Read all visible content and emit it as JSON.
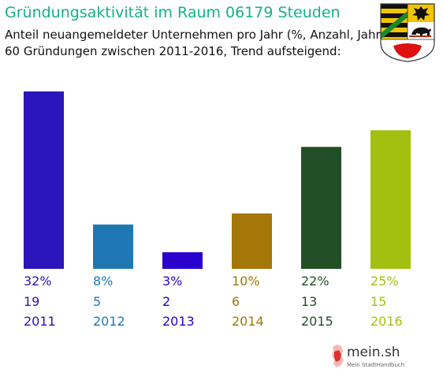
{
  "header": {
    "title": "Gründungsaktivität im Raum 06179 Steuden",
    "subtitle_line1": "Anteil neuangemeldeter Unternehmen pro Jahr (%, Anzahl, Jahr)",
    "subtitle_line2": "60 Gründungen zwischen 2011-2016, Trend aufsteigend:"
  },
  "crest": {
    "icon": "coat-of-arms-icon"
  },
  "chart_data": {
    "type": "bar",
    "title": "Gründungsaktivität im Raum 06179 Steuden",
    "categories": [
      "2011",
      "2012",
      "2013",
      "2014",
      "2015",
      "2016"
    ],
    "series": [
      {
        "values": [
          32,
          8,
          3,
          10,
          22,
          25
        ]
      }
    ],
    "counts": [
      19,
      5,
      2,
      6,
      13,
      15
    ],
    "percent_labels": [
      "32%",
      "8%",
      "3%",
      "10%",
      "22%",
      "25%"
    ],
    "count_labels": [
      "19",
      "5",
      "2",
      "6",
      "13",
      "15"
    ],
    "colors": [
      "#2a16bb",
      "#1f78b4",
      "#2a00cc",
      "#a57708",
      "#224f26",
      "#a3c010"
    ],
    "xlabel": "",
    "ylabel": "",
    "ylim": [
      0,
      32
    ],
    "grid": false,
    "legend": "none"
  },
  "brand": {
    "name": "mein.sh",
    "tagline": "Mein StadtHandbuch",
    "icon": "germany-map-icon"
  }
}
